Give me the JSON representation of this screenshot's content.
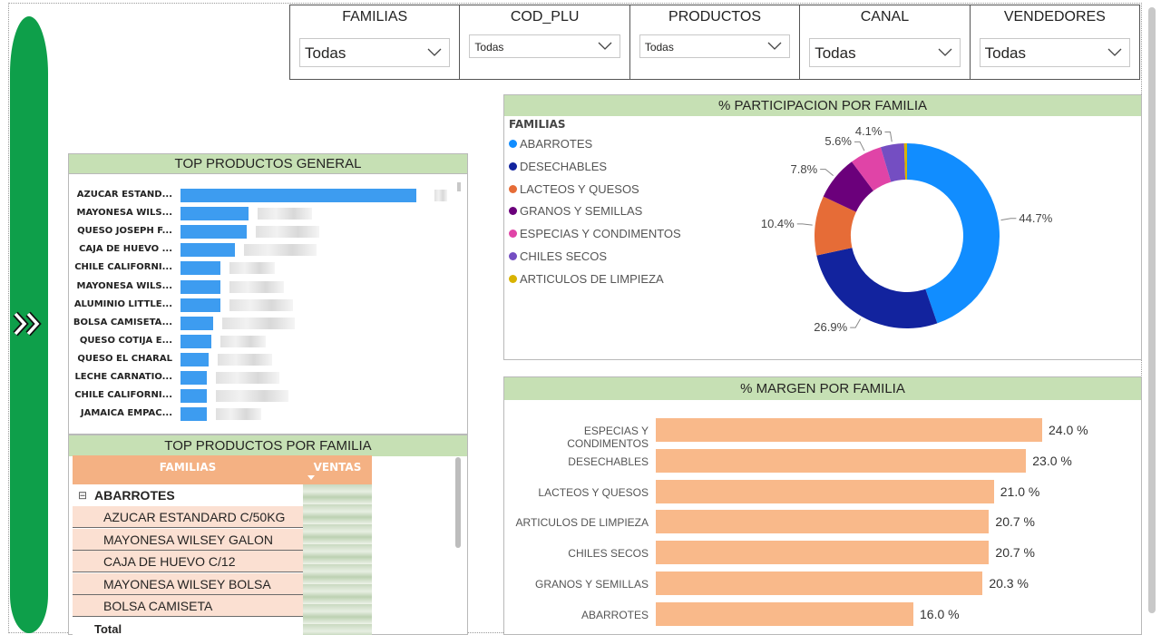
{
  "slicers": [
    {
      "title": "FAMILIAS",
      "value": "Todas",
      "size": "big"
    },
    {
      "title": "COD_PLU",
      "value": "Todas",
      "size": "small"
    },
    {
      "title": "PRODUCTOS",
      "value": "Todas",
      "size": "small"
    },
    {
      "title": "CANAL",
      "value": "Todas",
      "size": "big"
    },
    {
      "title": "VENDEDORES",
      "value": "Todas",
      "size": "big"
    }
  ],
  "top_general": {
    "title": "TOP PRODUCTOS GENERAL",
    "items": [
      {
        "label": "AZUCAR ESTAND...",
        "value": 100
      },
      {
        "label": "MAYONESA WILS...",
        "value": 29
      },
      {
        "label": "QUESO JOSEPH F...",
        "value": 28
      },
      {
        "label": "CAJA DE HUEVO ...",
        "value": 23
      },
      {
        "label": "CHILE CALIFORNI...",
        "value": 17
      },
      {
        "label": "MAYONESA WILS...",
        "value": 17
      },
      {
        "label": "ALUMINIO LITTLE...",
        "value": 17
      },
      {
        "label": "BOLSA CAMISETA...",
        "value": 14
      },
      {
        "label": "QUESO COTIJA E...",
        "value": 13
      },
      {
        "label": "QUESO EL CHARAL",
        "value": 12
      },
      {
        "label": "LECHE CARNATIO...",
        "value": 11
      },
      {
        "label": "CHILE CALIFORNI...",
        "value": 11
      },
      {
        "label": "JAMAICA EMPAC...",
        "value": 11
      }
    ]
  },
  "top_familia": {
    "title": "TOP PRODUCTOS POR FAMILIA",
    "col_familias": "FAMILIAS",
    "col_ventas": "VENTAS",
    "group_toggle": "⊟",
    "group": "ABARROTES",
    "rows": [
      "AZUCAR ESTANDARD C/50KG",
      "MAYONESA WILSEY GALON",
      "CAJA DE HUEVO C/12",
      "MAYONESA WILSEY BOLSA",
      "BOLSA CAMISETA BIODEGRADABLE"
    ],
    "total_label": "Total"
  },
  "participacion": {
    "title": "% PARTICIPACION POR FAMILIA",
    "legend_title": "FAMILIAS"
  },
  "margen": {
    "title": "% MARGEN POR FAMILIA"
  },
  "chart_data": [
    {
      "type": "pie",
      "title": "% PARTICIPACION POR FAMILIA",
      "legend_title": "FAMILIAS",
      "legend_position": "left",
      "slices": [
        {
          "name": "ABARROTES",
          "value": 44.7,
          "label": "44.7%",
          "color": "#118dff"
        },
        {
          "name": "DESECHABLES",
          "value": 26.9,
          "label": "26.9%",
          "color": "#12239e"
        },
        {
          "name": "LACTEOS Y QUESOS",
          "value": 10.4,
          "label": "10.4%",
          "color": "#e66c37"
        },
        {
          "name": "GRANOS Y SEMILLAS",
          "value": 7.8,
          "label": "7.8%",
          "color": "#6b007b"
        },
        {
          "name": "ESPECIAS Y CONDIMENTOS",
          "value": 5.6,
          "label": "5.6%",
          "color": "#e044a7"
        },
        {
          "name": "CHILES SECOS",
          "value": 4.1,
          "label": "4.1%",
          "color": "#744ec2"
        },
        {
          "name": "ARTICULOS DE LIMPIEZA",
          "value": 0.5,
          "label": "",
          "color": "#d9b300"
        }
      ]
    },
    {
      "type": "bar",
      "title": "% MARGEN POR FAMILIA",
      "orientation": "horizontal",
      "categories": [
        "ESPECIAS Y CONDIMENTOS",
        "DESECHABLES",
        "LACTEOS Y QUESOS",
        "ARTICULOS DE LIMPIEZA",
        "CHILES SECOS",
        "GRANOS Y SEMILLAS",
        "ABARROTES"
      ],
      "values": [
        24.0,
        23.0,
        21.0,
        20.7,
        20.7,
        20.3,
        16.0
      ],
      "value_labels": [
        "24.0 %",
        "23.0 %",
        "21.0 %",
        "20.7 %",
        "20.7 %",
        "20.3 %",
        "16.0 %"
      ],
      "color": "#f9b98a",
      "xlim": [
        0,
        24.0
      ]
    }
  ]
}
